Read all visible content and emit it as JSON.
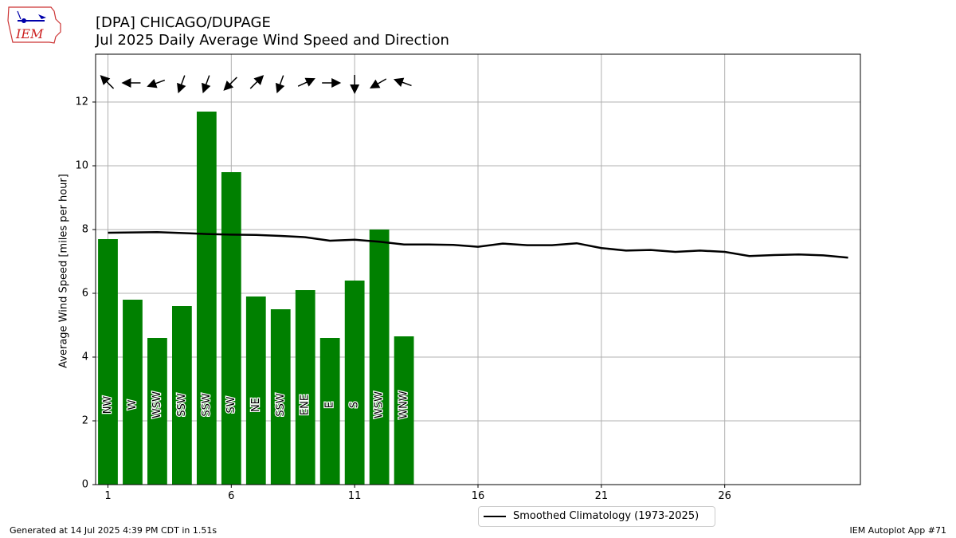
{
  "header": {
    "title_line1": "[DPA] CHICAGO/DUPAGE",
    "title_line2": "Jul 2025 Daily Average Wind Speed and Direction"
  },
  "footer": {
    "generated": "Generated at 14 Jul 2025 4:39 PM CDT in 1.51s",
    "app": "IEM Autoplot App #71"
  },
  "logo": {
    "text": "IEM",
    "icon": "iem-iowa-logo-icon",
    "border_color": "#cc3333",
    "text_color": "#cc2222",
    "mark_color": "#0000aa"
  },
  "legend": {
    "label": "Smoothed Climatology (1973-2025)"
  },
  "colors": {
    "bar": "#008000",
    "climo": "#000000",
    "grid": "#b0b0b0"
  },
  "chart_data": {
    "type": "bar",
    "title": "[DPA] CHICAGO/DUPAGE\nJul 2025 Daily Average Wind Speed and Direction",
    "xlabel": "",
    "ylabel": "Average Wind Speed [miles per hour]",
    "xlim": [
      0.5,
      31.5
    ],
    "ylim": [
      0,
      13.5
    ],
    "xticks": [
      1,
      6,
      11,
      16,
      21,
      26
    ],
    "yticks": [
      0,
      2,
      4,
      6,
      8,
      10,
      12
    ],
    "grid": true,
    "legend_position": "bottom-center, outside",
    "bars": {
      "days": [
        1,
        2,
        3,
        4,
        5,
        6,
        7,
        8,
        9,
        10,
        11,
        12,
        13
      ],
      "speed": [
        7.7,
        5.8,
        4.6,
        5.6,
        11.7,
        9.8,
        5.9,
        5.5,
        6.1,
        4.6,
        6.4,
        8.0,
        4.65
      ],
      "direction_label": [
        "NW",
        "W",
        "WSW",
        "SSW",
        "SSW",
        "SW",
        "NE",
        "SSW",
        "ENE",
        "E",
        "S",
        "WSW",
        "WNW"
      ],
      "direction_deg": [
        315,
        270,
        250,
        200,
        200,
        225,
        45,
        200,
        65,
        90,
        180,
        240,
        290
      ]
    },
    "climatology": {
      "name": "Smoothed Climatology (1973-2025)",
      "days": [
        1,
        2,
        3,
        4,
        5,
        6,
        7,
        8,
        9,
        10,
        11,
        12,
        13,
        14,
        15,
        16,
        17,
        18,
        19,
        20,
        21,
        22,
        23,
        24,
        25,
        26,
        27,
        28,
        29,
        30,
        31
      ],
      "values": [
        7.9,
        7.91,
        7.92,
        7.89,
        7.86,
        7.84,
        7.83,
        7.8,
        7.76,
        7.65,
        7.68,
        7.62,
        7.53,
        7.53,
        7.52,
        7.46,
        7.56,
        7.51,
        7.51,
        7.57,
        7.42,
        7.34,
        7.36,
        7.3,
        7.34,
        7.3,
        7.17,
        7.2,
        7.22,
        7.19,
        7.12
      ]
    }
  }
}
